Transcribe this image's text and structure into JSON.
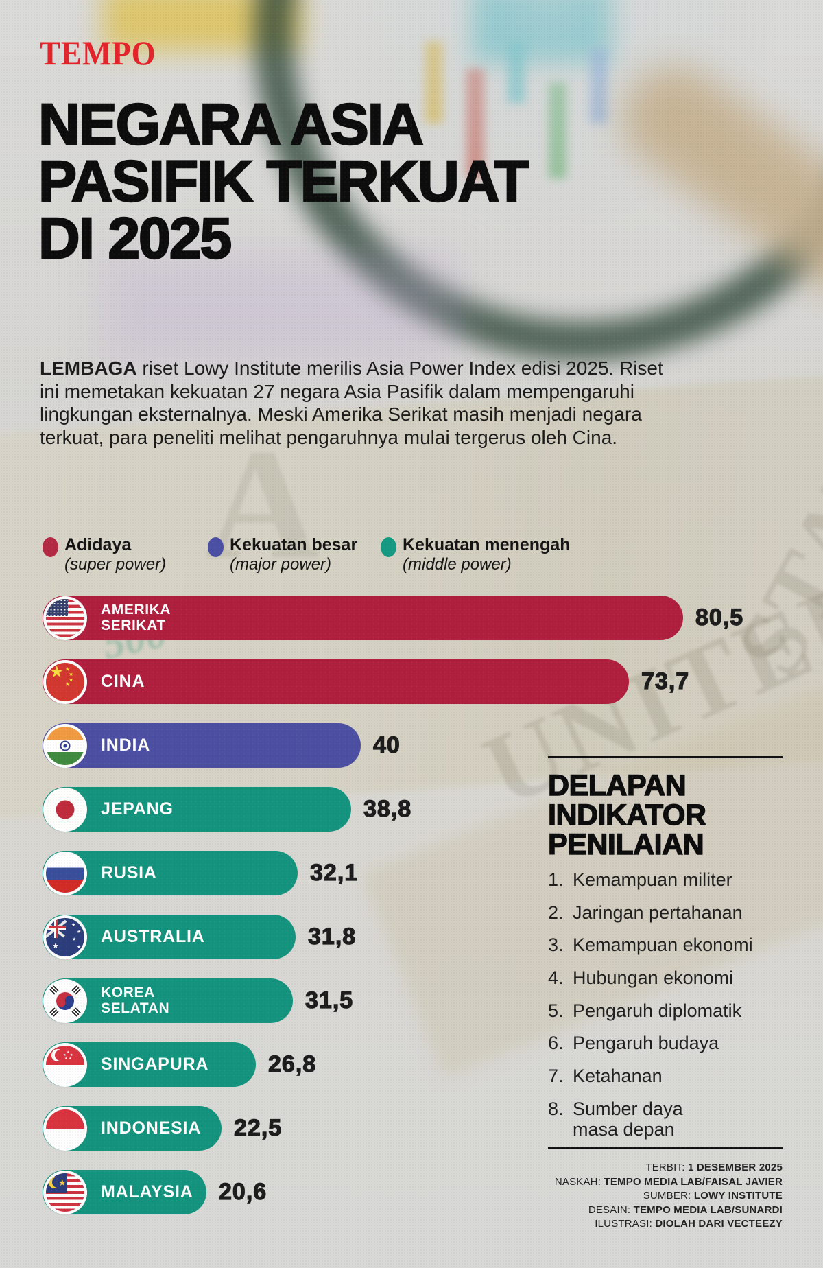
{
  "brand": {
    "logo": "TEMPO"
  },
  "title": {
    "lines": [
      "NEGARA ASIA",
      "PASIFIK TERKUAT",
      "DI 2025"
    ]
  },
  "intro": {
    "lead": "LEMBAGA",
    "text": " riset Lowy Institute merilis Asia Power Index edisi 2025. Riset ini memetakan kekuatan 27 negara Asia Pasifik dalam mempengaruhi lingkungan eksternalnya. Meski Amerika Serikat masih menjadi negara terkuat, para peneliti melihat pengaruhnya mulai tergerus oleh Cina."
  },
  "legend": {
    "items": [
      {
        "label": "Adidaya",
        "sub": "(super power)",
        "color": "#b42a44"
      },
      {
        "label": "Kekuatan besar",
        "sub": "(major power)",
        "color": "#4c50a5"
      },
      {
        "label": "Kekuatan menengah",
        "sub": "(middle power)",
        "color": "#169a83"
      }
    ]
  },
  "chart_data": {
    "type": "bar",
    "orientation": "horizontal",
    "categories": [
      "AMERIKA SERIKAT",
      "CINA",
      "INDIA",
      "JEPANG",
      "RUSIA",
      "AUSTRALIA",
      "KOREA SELATAN",
      "SINGAPURA",
      "INDONESIA",
      "MALAYSIA"
    ],
    "label_lines": [
      [
        "AMERIKA",
        "SERIKAT"
      ],
      [
        "CINA"
      ],
      [
        "INDIA"
      ],
      [
        "JEPANG"
      ],
      [
        "RUSIA"
      ],
      [
        "AUSTRALIA"
      ],
      [
        "KOREA",
        "SELATAN"
      ],
      [
        "SINGAPURA"
      ],
      [
        "INDONESIA"
      ],
      [
        "MALAYSIA"
      ]
    ],
    "values": [
      80.5,
      73.7,
      40,
      38.8,
      32.1,
      31.8,
      31.5,
      26.8,
      22.5,
      20.6
    ],
    "value_labels": [
      "80,5",
      "73,7",
      "40",
      "38,8",
      "32,1",
      "31,8",
      "31,5",
      "26,8",
      "22,5",
      "20,6"
    ],
    "groups": [
      "super_power",
      "super_power",
      "major_power",
      "middle_power",
      "middle_power",
      "middle_power",
      "middle_power",
      "middle_power",
      "middle_power",
      "middle_power"
    ],
    "group_colors": {
      "super_power": "#b01f3e",
      "major_power": "#4c4fa2",
      "middle_power": "#14947e"
    },
    "flags": [
      "us",
      "cn",
      "in",
      "jp",
      "ru",
      "au",
      "kr",
      "sg",
      "id",
      "my"
    ],
    "xlim": [
      0,
      86
    ],
    "legend_position": "top"
  },
  "indicators": {
    "heading_lines": [
      "DELAPAN",
      "INDIKATOR",
      "PENILAIAN"
    ],
    "items": [
      {
        "lines": [
          "Kemampuan militer"
        ]
      },
      {
        "lines": [
          "Jaringan pertahanan"
        ]
      },
      {
        "lines": [
          "Kemampuan ekonomi"
        ]
      },
      {
        "lines": [
          "Hubungan ekonomi"
        ]
      },
      {
        "lines": [
          "Pengaruh diplomatik"
        ]
      },
      {
        "lines": [
          "Pengaruh budaya"
        ]
      },
      {
        "lines": [
          "Ketahanan"
        ]
      },
      {
        "lines": [
          "Sumber daya",
          "masa depan"
        ]
      }
    ]
  },
  "credits": [
    {
      "label": "TERBIT:",
      "value": "1 DESEMBER 2025"
    },
    {
      "label": "NASKAH:",
      "value": "TEMPO MEDIA LAB/FAISAL JAVIER"
    },
    {
      "label": "SUMBER:",
      "value": "LOWY INSTITUTE"
    },
    {
      "label": "DESAIN:",
      "value": "TEMPO MEDIA LAB/SUNARDI"
    },
    {
      "label": "ILUSTRASI:",
      "value": "DIOLAH DARI VECTEEZY"
    }
  ]
}
